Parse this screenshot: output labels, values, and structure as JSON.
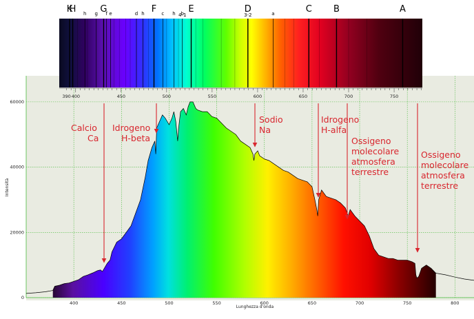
{
  "colors": {
    "annotation": "#d8262e",
    "plot_bg": "#e9ebe1",
    "grid": "#4bbb3f",
    "spectrum_line": "#000000"
  },
  "fraunhofer_strip": {
    "lines": [
      {
        "label": "K",
        "nm": 393.4,
        "big": true
      },
      {
        "label": "H",
        "nm": 396.8,
        "big": true
      },
      {
        "label": "h",
        "nm": 410.2,
        "big": false
      },
      {
        "label": "g",
        "nm": 422.7,
        "big": false
      },
      {
        "label": "G",
        "nm": 430.8,
        "big": true
      },
      {
        "label": "f",
        "nm": 434.0,
        "big": false
      },
      {
        "label": "e",
        "nm": 438.4,
        "big": false
      },
      {
        "label": "d",
        "nm": 466.8,
        "big": false
      },
      {
        "label": "h",
        "nm": 474.0,
        "big": false
      },
      {
        "label": "F",
        "nm": 486.1,
        "big": true
      },
      {
        "label": "c",
        "nm": 495.8,
        "big": false
      },
      {
        "label": "h",
        "nm": 508.0,
        "big": false
      },
      {
        "label": "b",
        "nm": 517.3,
        "big": false
      },
      {
        "label": "4-1",
        "nm": 517.3,
        "big": false
      },
      {
        "label": "E",
        "nm": 527.0,
        "big": true
      },
      {
        "label": "D",
        "nm": 589.3,
        "big": true
      },
      {
        "label": "3-2",
        "nm": 589.3,
        "big": false
      },
      {
        "label": "a",
        "nm": 617.0,
        "big": false
      },
      {
        "label": "C",
        "nm": 656.3,
        "big": true
      },
      {
        "label": "B",
        "nm": 686.7,
        "big": true
      },
      {
        "label": "A",
        "nm": 759.4,
        "big": true
      }
    ],
    "scale_ticks": [
      "390",
      "400",
      "450",
      "500",
      "550",
      "600",
      "650",
      "700",
      "750"
    ]
  },
  "annotations": [
    {
      "text": [
        "Calcio",
        "Ca"
      ],
      "nm": 430.8
    },
    {
      "text": [
        "Idrogeno",
        "H-beta"
      ],
      "nm": 486.1
    },
    {
      "text": [
        "Sodio",
        "Na"
      ],
      "nm": 589.3
    },
    {
      "text": [
        "Idrogeno",
        "H-alfa"
      ],
      "nm": 656.3
    },
    {
      "text": [
        "Ossigeno",
        "molecolare",
        "atmosfera",
        "terrestre"
      ],
      "nm": 686.7
    },
    {
      "text": [
        "Ossigeno",
        "molecolare",
        "atmosfera",
        "terrestre"
      ],
      "nm": 759.4
    }
  ],
  "chart_data": {
    "type": "area",
    "xlabel": "Lunghezza d'onda",
    "ylabel": "Intensità",
    "xlim": [
      350,
      820
    ],
    "ylim": [
      0,
      68000
    ],
    "x_ticks": [
      400,
      450,
      500,
      550,
      600,
      650,
      700,
      750,
      800
    ],
    "y_ticks": [
      0,
      20000,
      40000,
      60000
    ],
    "grid": true,
    "series": [
      {
        "x": [
          350,
          360,
          370,
          378,
          380,
          385,
          390,
          395,
          400,
          405,
          410,
          415,
          420,
          425,
          428,
          430,
          432,
          435,
          438,
          440,
          445,
          450,
          455,
          460,
          465,
          470,
          475,
          478,
          482,
          485,
          486,
          487,
          490,
          493,
          496,
          500,
          503,
          505,
          507,
          509,
          510,
          512,
          515,
          518,
          520,
          522,
          525,
          528,
          530,
          535,
          540,
          545,
          550,
          555,
          560,
          565,
          570,
          575,
          580,
          585,
          588,
          589,
          590,
          593,
          595,
          600,
          605,
          610,
          615,
          620,
          625,
          630,
          635,
          640,
          645,
          650,
          653,
          655,
          656,
          657,
          660,
          665,
          670,
          675,
          680,
          685,
          688,
          690,
          695,
          700,
          705,
          710,
          715,
          720,
          725,
          730,
          735,
          740,
          745,
          750,
          755,
          758,
          759,
          760,
          762,
          765,
          770,
          775,
          780,
          790,
          800,
          810,
          820
        ],
        "values": [
          1300,
          1500,
          1800,
          2200,
          3500,
          3800,
          4300,
          4500,
          5000,
          5500,
          6500,
          7000,
          7600,
          8300,
          8500,
          8000,
          9000,
          10500,
          11500,
          14000,
          17000,
          18000,
          20000,
          22000,
          26000,
          30000,
          37000,
          42000,
          46000,
          48000,
          44000,
          52000,
          54000,
          56000,
          55000,
          53000,
          55000,
          57000,
          54000,
          48000,
          52000,
          57000,
          58000,
          56000,
          58500,
          60000,
          60000,
          58000,
          57500,
          57000,
          57000,
          55500,
          55000,
          53500,
          52000,
          51000,
          50000,
          48000,
          47000,
          46000,
          44000,
          42000,
          44000,
          45000,
          43500,
          42500,
          42000,
          41000,
          40000,
          39000,
          38500,
          37500,
          36500,
          36000,
          35500,
          34000,
          30000,
          27000,
          25000,
          30000,
          33000,
          31000,
          30500,
          30000,
          29000,
          27500,
          25000,
          27000,
          25000,
          23500,
          22000,
          19000,
          15000,
          13000,
          12500,
          12000,
          12000,
          11500,
          11500,
          11500,
          11000,
          10500,
          7000,
          6000,
          6500,
          9000,
          10000,
          9000,
          7500,
          7000,
          6300,
          5700,
          5300
        ]
      }
    ]
  }
}
